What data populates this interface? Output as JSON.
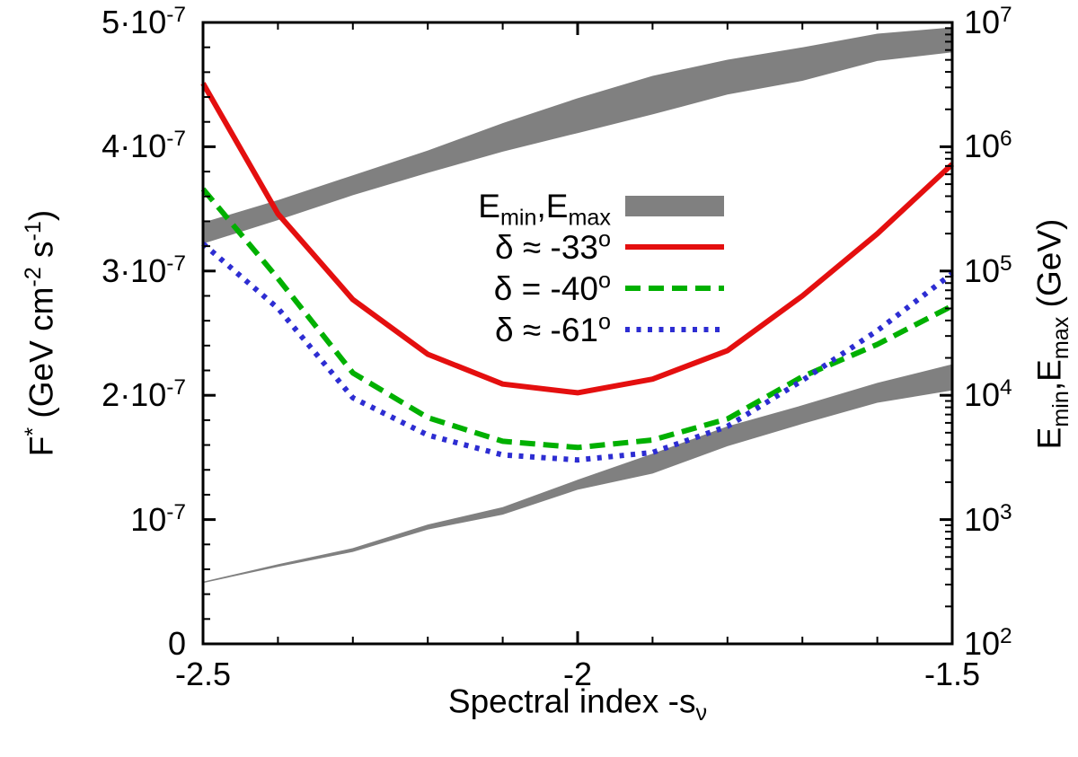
{
  "chart_data": {
    "type": "line",
    "title": "",
    "xlabel": "Spectral index -s_{ν}",
    "ylabel_left": "F^{*} (GeV cm^{-2} s^{-1})",
    "ylabel_right": "E_{min},E_{max} (GeV)",
    "grid": false,
    "x_axis": {
      "range": [
        -2.5,
        -1.5
      ],
      "major_ticks": [
        {
          "value": -2.5,
          "label": "-2.5"
        },
        {
          "value": -2.0,
          "label": "-2"
        },
        {
          "value": -1.5,
          "label": "-1.5"
        }
      ],
      "minor_tick_step": 0.1
    },
    "y_axis_left": {
      "scale": "linear",
      "range": [
        0,
        5e-07
      ],
      "major_ticks": [
        {
          "value": 0,
          "label": "0"
        },
        {
          "value": 1e-07,
          "label": "10^{-7}"
        },
        {
          "value": 2e-07,
          "label": "2·10^{-7}"
        },
        {
          "value": 3e-07,
          "label": "3·10^{-7}"
        },
        {
          "value": 4e-07,
          "label": "4·10^{-7}"
        },
        {
          "value": 5e-07,
          "label": "5·10^{-7}"
        }
      ],
      "minor_tick_step": 2e-08
    },
    "y_axis_right": {
      "scale": "log",
      "range_log10": [
        2,
        7
      ],
      "major_ticks": [
        {
          "log10": 2,
          "label": "10^{2}"
        },
        {
          "log10": 3,
          "label": "10^{3}"
        },
        {
          "log10": 4,
          "label": "10^{4}"
        },
        {
          "log10": 5,
          "label": "10^{5}"
        },
        {
          "log10": 6,
          "label": "10^{6}"
        },
        {
          "log10": 7,
          "label": "10^{7}"
        }
      ],
      "minor_ticks_mantissae": [
        2,
        3,
        4,
        5,
        6,
        7,
        8,
        9
      ]
    },
    "x": [
      -2.5,
      -2.4,
      -2.3,
      -2.2,
      -2.1,
      -2.0,
      -1.9,
      -1.8,
      -1.7,
      -1.6,
      -1.5
    ],
    "series": [
      {
        "name": "δ ≈ -33^{o}",
        "color": "#e40f0f",
        "line_style": "solid",
        "axis": "left",
        "values": [
          4.51e-07,
          3.46e-07,
          2.77e-07,
          2.33e-07,
          2.09e-07,
          2.02e-07,
          2.13e-07,
          2.36e-07,
          2.8e-07,
          3.3e-07,
          3.86e-07
        ]
      },
      {
        "name": "δ = -40^{o}",
        "color": "#00b000",
        "line_style": "dashed",
        "axis": "left",
        "values": [
          3.66e-07,
          2.94e-07,
          2.18e-07,
          1.82e-07,
          1.63e-07,
          1.58e-07,
          1.64e-07,
          1.81e-07,
          2.15e-07,
          2.41e-07,
          2.72e-07
        ]
      },
      {
        "name": "δ ≈ -61^{o}",
        "color": "#2d2dd2",
        "line_style": "dotted",
        "axis": "left",
        "values": [
          3.22e-07,
          2.7e-07,
          1.98e-07,
          1.68e-07,
          1.52e-07,
          1.48e-07,
          1.54e-07,
          1.75e-07,
          2.12e-07,
          2.52e-07,
          2.98e-07
        ]
      }
    ],
    "bands": [
      {
        "name": "E_{max}",
        "color": "#808080",
        "axis": "right",
        "top_log10": [
          5.39,
          5.57,
          5.77,
          5.97,
          6.19,
          6.39,
          6.57,
          6.7,
          6.8,
          6.91,
          6.96
        ],
        "bottom_log10": [
          5.22,
          5.41,
          5.61,
          5.79,
          5.96,
          6.11,
          6.26,
          6.42,
          6.53,
          6.69,
          6.76
        ]
      },
      {
        "name": "E_{min}",
        "color": "#808080",
        "axis": "right",
        "top_log10": [
          2.5,
          2.64,
          2.77,
          2.96,
          3.1,
          3.32,
          3.53,
          3.75,
          3.92,
          4.1,
          4.25
        ],
        "bottom_log10": [
          2.49,
          2.62,
          2.74,
          2.92,
          3.04,
          3.24,
          3.37,
          3.59,
          3.77,
          3.94,
          4.04
        ]
      }
    ],
    "legend": {
      "position": "inside-top-center",
      "items": [
        {
          "label": "E_{min},E_{max}",
          "swatch": "band",
          "color": "#808080"
        },
        {
          "label": "δ ≈ -33^{o}",
          "swatch": "solid",
          "color": "#e40f0f"
        },
        {
          "label": "δ = -40^{o}",
          "swatch": "dashed",
          "color": "#00b000"
        },
        {
          "label": "δ ≈ -61^{o}",
          "swatch": "dotted",
          "color": "#2d2dd2"
        }
      ]
    },
    "frame_color": "#000000",
    "background_color": "#ffffff"
  }
}
